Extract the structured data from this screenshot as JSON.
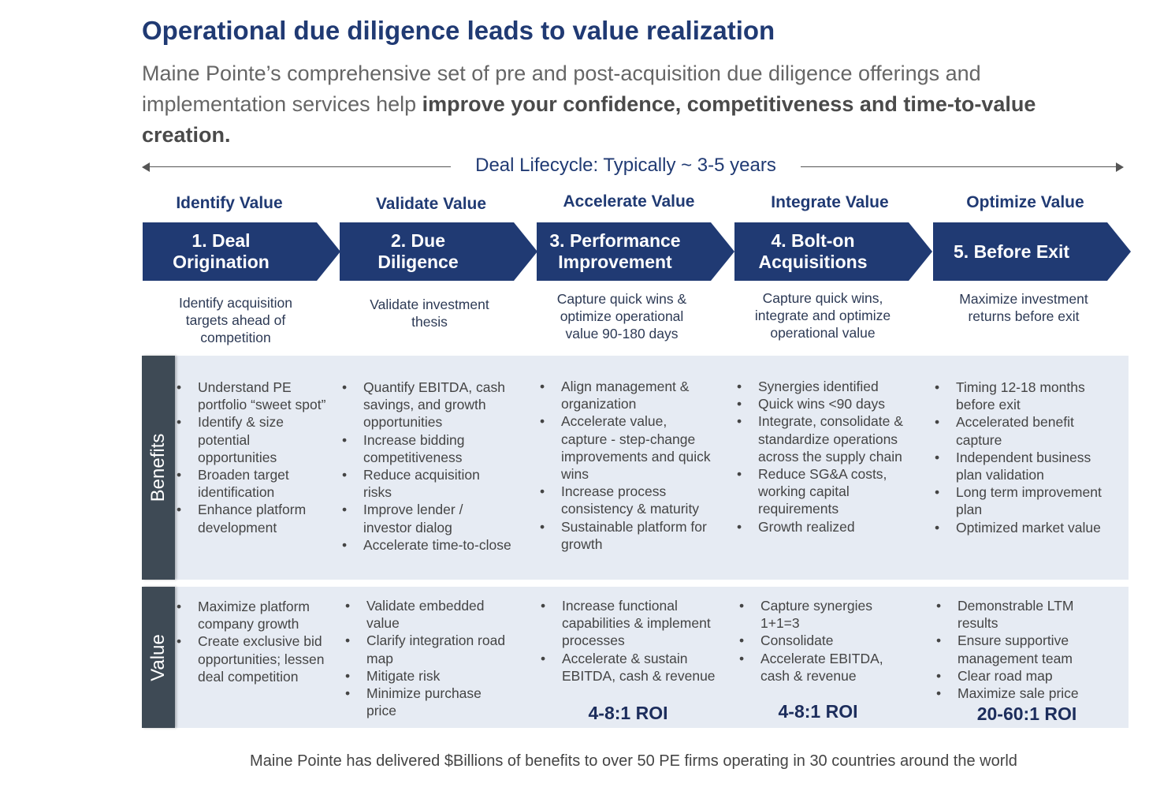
{
  "title": "Operational due diligence leads to value realization",
  "subtitle": {
    "lead": "Maine Pointe’s comprehensive set of pre and post-acquisition due diligence offerings and implementation services help ",
    "emphasis": "improve your confidence, competitiveness and time-to-value creation."
  },
  "lifecycle_label": "Deal Lifecycle: Typically ~ 3-5 years",
  "stages": [
    {
      "header": "Identify Value",
      "chevron_lines": [
        "1. Deal",
        "Origination"
      ],
      "description": [
        "Identify acquisition",
        "targets ahead of",
        "competition"
      ],
      "benefits": [
        "Understand PE portfolio “sweet spot”",
        "Identify & size potential opportunities",
        "Broaden target identification",
        "Enhance platform development"
      ],
      "value": [
        "Maximize platform company growth",
        "Create exclusive bid opportunities; lessen deal competition"
      ],
      "roi": ""
    },
    {
      "header": "Validate Value",
      "chevron_lines": [
        "2. Due",
        "Diligence"
      ],
      "description": [
        "Validate investment",
        "thesis"
      ],
      "benefits": [
        "Quantify EBITDA, cash savings, and growth opportunities",
        "Increase bidding competitiveness",
        "Reduce acquisition risks",
        "Improve lender / investor dialog",
        "Accelerate time-to-close"
      ],
      "value": [
        "Validate embedded value",
        "Clarify integration road map",
        "Mitigate risk",
        "Minimize purchase price"
      ],
      "roi": ""
    },
    {
      "header": "Accelerate Value",
      "chevron_lines": [
        "3. Performance",
        "Improvement"
      ],
      "description": [
        "Capture quick wins &",
        "optimize operational",
        "value 90-180 days"
      ],
      "benefits": [
        "Align management & organization",
        "Accelerate value, capture - step-change improvements and quick wins",
        "Increase process consistency & maturity",
        "Sustainable platform for growth"
      ],
      "value": [
        "Increase functional capabilities & implement processes",
        "Accelerate & sustain EBITDA, cash & revenue"
      ],
      "roi": "4-8:1 ROI"
    },
    {
      "header": "Integrate Value",
      "chevron_lines": [
        "4. Bolt-on",
        "Acquisitions"
      ],
      "description": [
        "Capture quick wins,",
        "integrate and optimize",
        "operational value"
      ],
      "benefits": [
        "Synergies identified",
        "Quick wins <90 days",
        "Integrate, consolidate & standardize operations across the supply chain",
        "Reduce SG&A costs, working capital requirements",
        "Growth realized"
      ],
      "value": [
        "Capture synergies 1+1=3",
        "Consolidate",
        "Accelerate EBITDA, cash & revenue"
      ],
      "roi": "4-8:1 ROI"
    },
    {
      "header": "Optimize Value",
      "chevron_lines": [
        "5. Before Exit"
      ],
      "description": [
        "Maximize investment",
        "returns before exit"
      ],
      "benefits": [
        "Timing 12-18 months before exit",
        "Accelerated benefit capture",
        "Independent business plan validation",
        "Long term improvement plan",
        "Optimized market value"
      ],
      "value": [
        "Demonstrable LTM results",
        "Ensure supportive management team",
        "Clear road map",
        "Maximize sale price"
      ],
      "roi": "20-60:1 ROI"
    }
  ],
  "band_labels": {
    "benefits": "Benefits",
    "value": "Value"
  },
  "footer": "Maine Pointe has delivered $Billions of benefits to over 50 PE firms operating in 30 countries around the world",
  "colors": {
    "navy": "#203a73",
    "band_bg": "#e6ebf3",
    "band_label_bg": "#3e4a55"
  }
}
